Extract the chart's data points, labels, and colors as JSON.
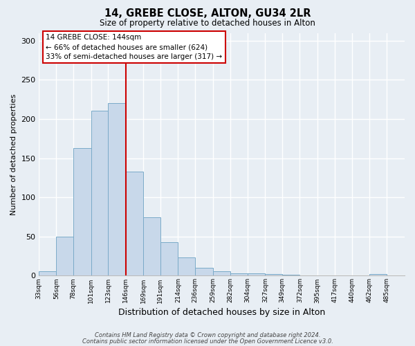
{
  "title1": "14, GREBE CLOSE, ALTON, GU34 2LR",
  "title2": "Size of property relative to detached houses in Alton",
  "xlabel": "Distribution of detached houses by size in Alton",
  "ylabel": "Number of detached properties",
  "bar_left_edges": [
    33,
    56,
    78,
    101,
    123,
    146,
    169,
    191,
    214,
    236,
    259,
    282,
    304,
    327,
    349,
    372,
    395,
    417,
    440,
    462
  ],
  "bar_widths": [
    23,
    22,
    23,
    22,
    23,
    23,
    22,
    23,
    22,
    23,
    23,
    22,
    23,
    22,
    23,
    23,
    22,
    23,
    22,
    23
  ],
  "bar_heights": [
    6,
    50,
    163,
    211,
    220,
    133,
    75,
    43,
    23,
    10,
    6,
    3,
    3,
    2,
    1,
    0,
    0,
    0,
    0,
    2
  ],
  "bar_color": "#c8d8ea",
  "bar_edge_color": "#7aaac8",
  "vline_x": 146,
  "vline_color": "#cc0000",
  "ann_line1": "14 GREBE CLOSE: 144sqm",
  "ann_line2": "← 66% of detached houses are smaller (624)",
  "ann_line3": "33% of semi-detached houses are larger (317) →",
  "annotation_box_edge_color": "#cc0000",
  "annotation_box_face_color": "white",
  "ylim": [
    0,
    310
  ],
  "yticks": [
    0,
    50,
    100,
    150,
    200,
    250,
    300
  ],
  "tick_labels": [
    "33sqm",
    "56sqm",
    "78sqm",
    "101sqm",
    "123sqm",
    "146sqm",
    "169sqm",
    "191sqm",
    "214sqm",
    "236sqm",
    "259sqm",
    "282sqm",
    "304sqm",
    "327sqm",
    "349sqm",
    "372sqm",
    "395sqm",
    "417sqm",
    "440sqm",
    "462sqm",
    "485sqm"
  ],
  "footnote1": "Contains HM Land Registry data © Crown copyright and database right 2024.",
  "footnote2": "Contains public sector information licensed under the Open Government Licence v3.0.",
  "background_color": "#e8eef4",
  "grid_color": "#ffffff"
}
